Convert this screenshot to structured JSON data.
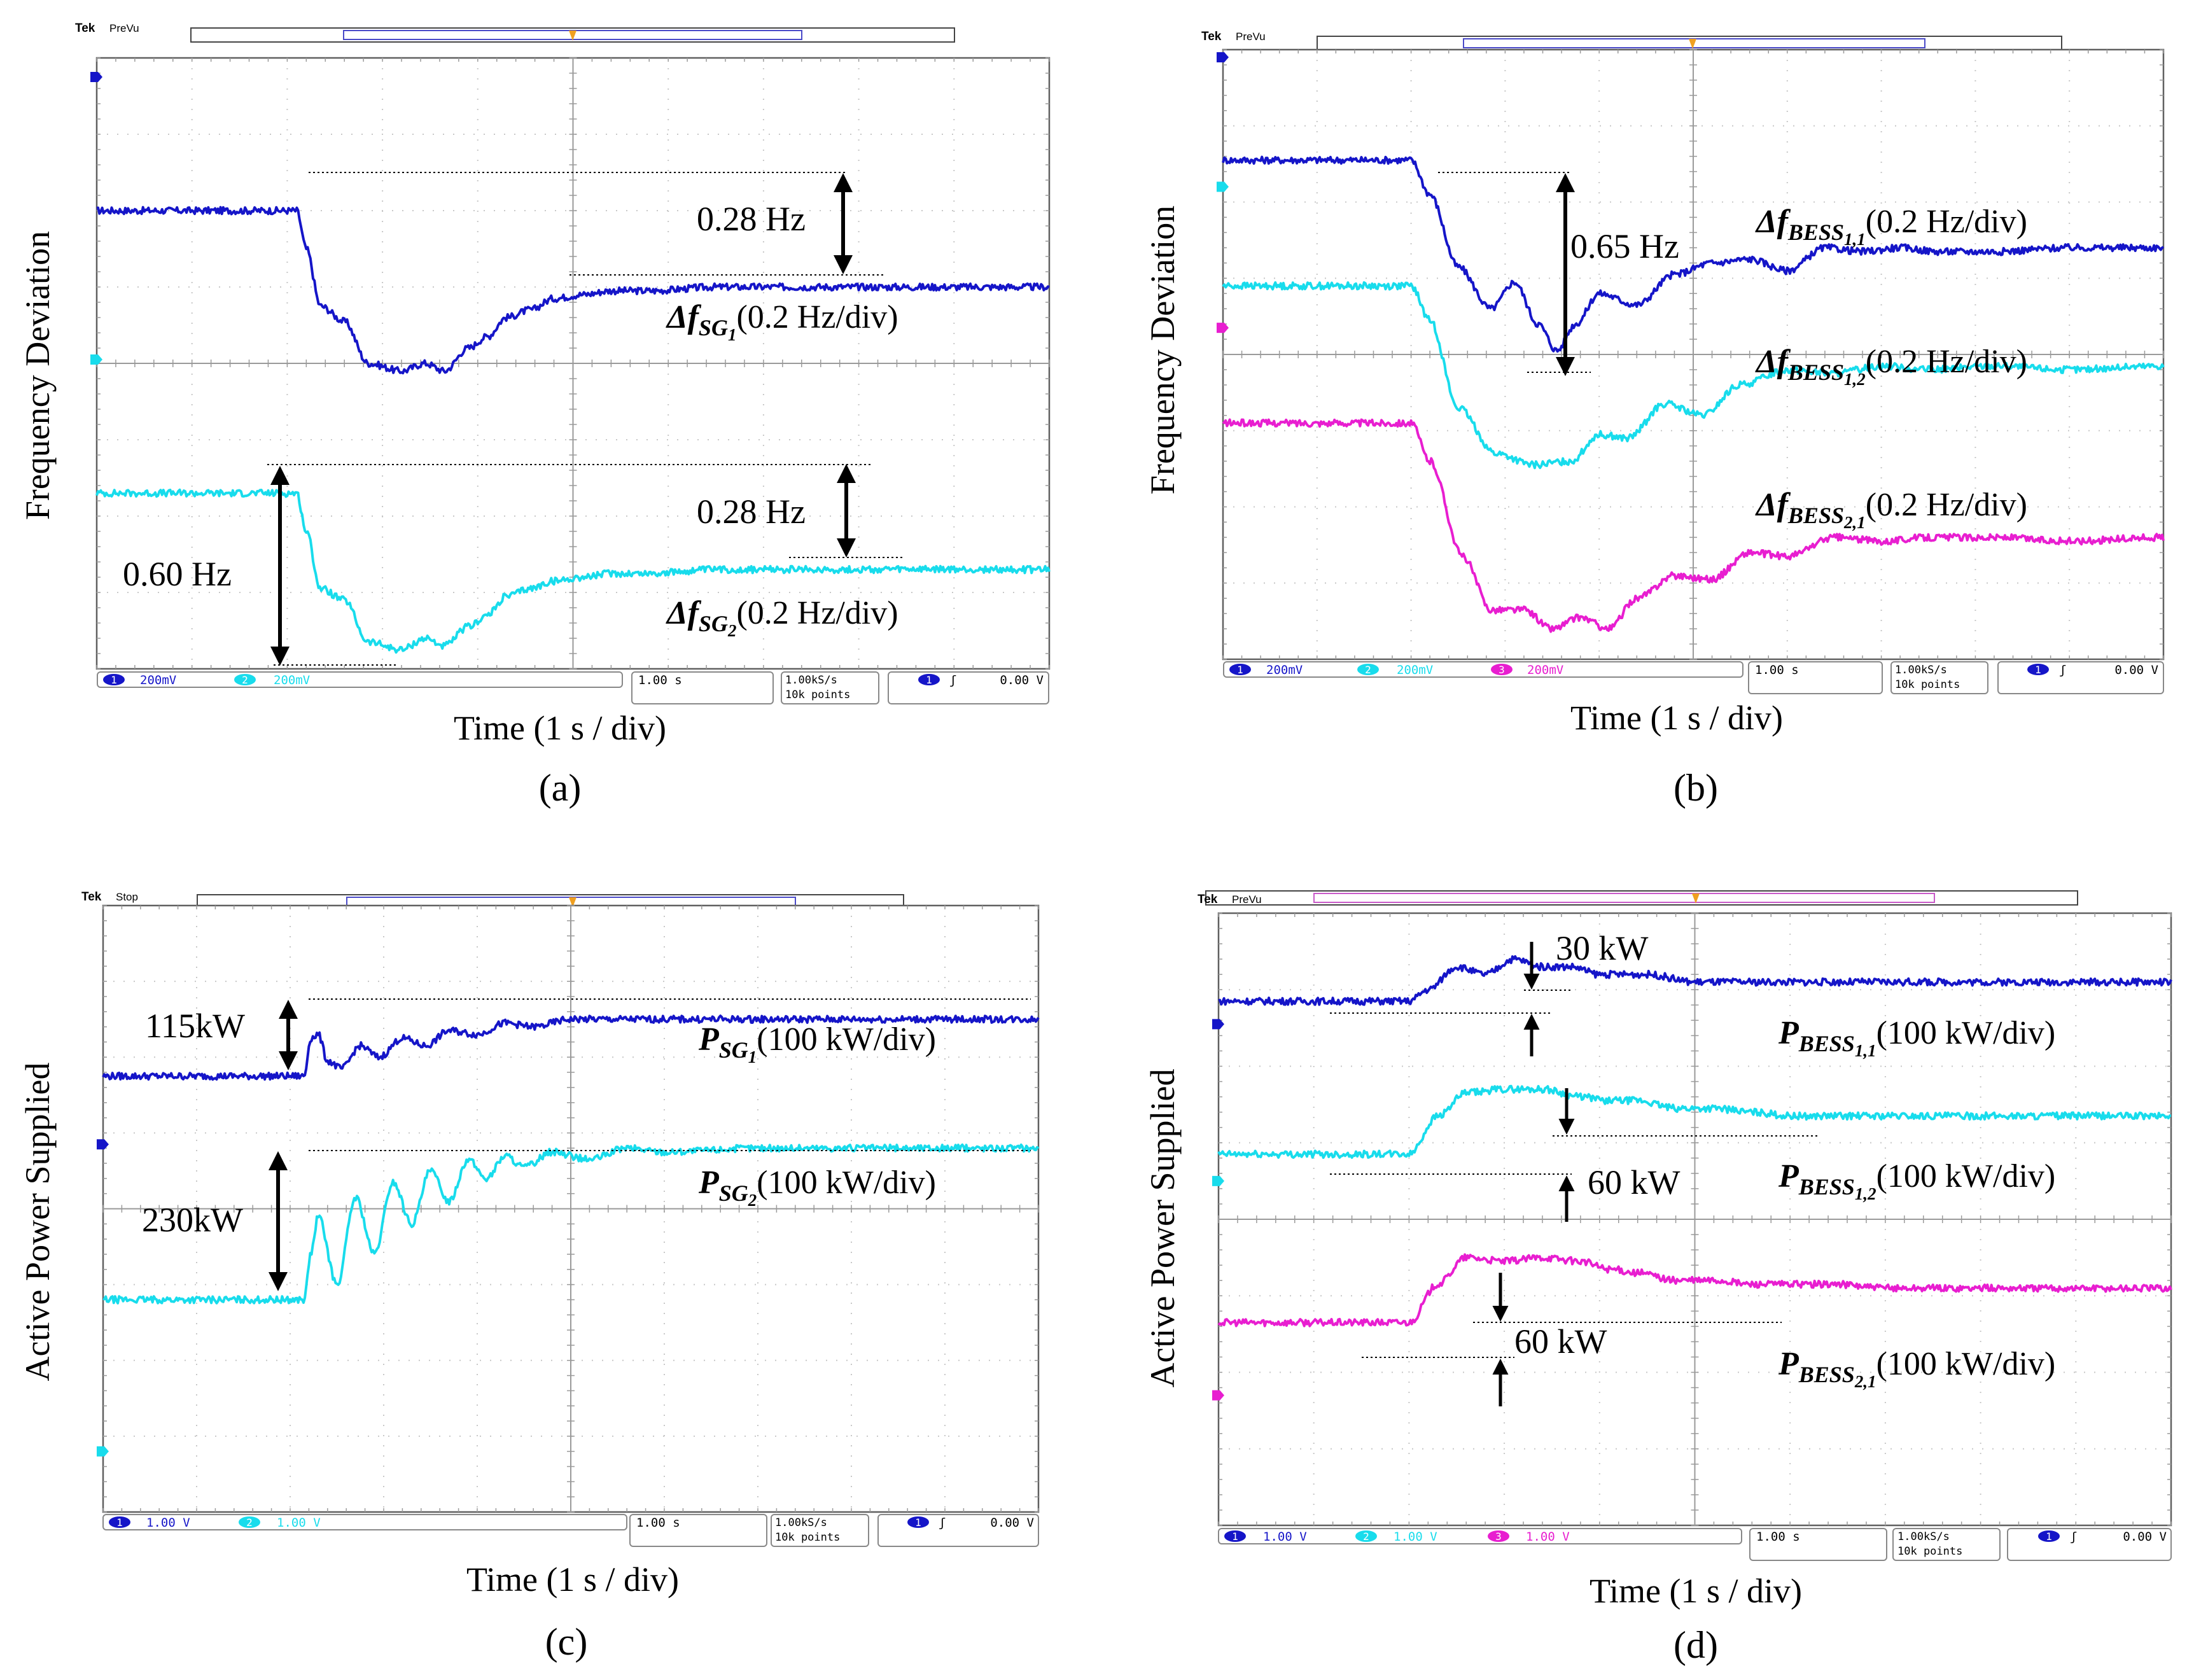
{
  "colors": {
    "ch1": "#1515c8",
    "ch2": "#18dcec",
    "ch3": "#e81ed0",
    "grid": "#c8c8c8",
    "frame": "#606060"
  },
  "chart_data": [
    {
      "type": "line",
      "panel_label": "(a)",
      "tek_header": "Tek",
      "tek_state": "PreVu",
      "ylabel": "Frequency Deviation",
      "xlabel": "Time (1 s / div)",
      "x_divisions": 10,
      "y_divisions": 8,
      "channel_markers": [
        {
          "channel": 1,
          "y_div": 7.75
        },
        {
          "channel": 2,
          "y_div": 4.05
        }
      ],
      "series": [
        {
          "name_base": "Δf",
          "name_sub": "SG",
          "name_subsub": "1",
          "unit_text": "(0.2 Hz/div)",
          "channel": 1,
          "x": [
            0.0,
            2.1,
            2.2,
            2.35,
            2.6,
            2.85,
            3.2,
            3.45,
            3.65,
            3.9,
            4.1,
            4.3,
            4.55,
            4.8,
            5.1,
            5.4,
            5.8,
            6.5,
            7.2,
            8.0,
            8.8,
            10.0
          ],
          "y": [
            6.0,
            6.0,
            5.5,
            4.75,
            4.55,
            4.0,
            3.9,
            4.0,
            3.9,
            4.2,
            4.35,
            4.6,
            4.7,
            4.85,
            4.9,
            4.95,
            4.95,
            5.0,
            5.0,
            5.0,
            5.0,
            5.0
          ]
        },
        {
          "name_base": "Δf",
          "name_sub": "SG",
          "name_subsub": "2",
          "unit_text": "(0.2 Hz/div)",
          "channel": 2,
          "x": [
            0.0,
            2.1,
            2.2,
            2.35,
            2.6,
            2.85,
            3.2,
            3.45,
            3.65,
            3.9,
            4.1,
            4.3,
            4.55,
            4.8,
            5.1,
            5.4,
            5.8,
            6.5,
            7.2,
            8.0,
            8.8,
            10.0
          ],
          "y": [
            2.3,
            2.3,
            1.8,
            1.05,
            0.9,
            0.35,
            0.25,
            0.4,
            0.3,
            0.55,
            0.7,
            0.95,
            1.05,
            1.15,
            1.2,
            1.25,
            1.25,
            1.3,
            1.3,
            1.3,
            1.3,
            1.3
          ]
        }
      ],
      "annotations": [
        "0.28 Hz",
        "0.28 Hz",
        "0.60 Hz"
      ],
      "readouts": {
        "ch1": "200mV",
        "ch2": "200mV",
        "ch3": "",
        "timebase": "1.00 s",
        "rate": "1.00kS/s",
        "points": "10k points",
        "trig_level": "0.00 V"
      }
    },
    {
      "type": "line",
      "panel_label": "(b)",
      "tek_header": "Tek",
      "tek_state": "PreVu",
      "ylabel": "Frequency Deviation",
      "xlabel": "Time (1 s / div)",
      "x_divisions": 10,
      "y_divisions": 8,
      "channel_markers": [
        {
          "channel": 1,
          "y_div": 7.9
        },
        {
          "channel": 2,
          "y_div": 6.2
        },
        {
          "channel": 3,
          "y_div": 4.35
        }
      ],
      "series": [
        {
          "name_base": "Δf",
          "name_sub": "BESS",
          "name_subsub": "1,1",
          "unit_text": "(0.2 Hz/div)",
          "channel": 1,
          "x": [
            0.0,
            2.0,
            2.2,
            2.5,
            2.85,
            3.1,
            3.35,
            3.55,
            3.75,
            4.0,
            4.4,
            4.8,
            5.2,
            5.6,
            6.0,
            6.4,
            6.8,
            7.2,
            7.6,
            8.2,
            9.0,
            10.0
          ],
          "y": [
            6.55,
            6.55,
            6.1,
            5.15,
            4.6,
            4.95,
            4.4,
            4.05,
            4.4,
            4.8,
            4.65,
            5.05,
            5.2,
            5.25,
            5.1,
            5.4,
            5.35,
            5.4,
            5.35,
            5.35,
            5.4,
            5.4
          ]
        },
        {
          "name_base": "Δf",
          "name_sub": "BESS",
          "name_subsub": "1,2",
          "unit_text": "(0.2 Hz/div)",
          "channel": 2,
          "x": [
            0.0,
            2.0,
            2.2,
            2.5,
            2.9,
            3.3,
            3.7,
            4.0,
            4.3,
            4.7,
            5.1,
            5.5,
            6.0,
            6.5,
            7.0,
            7.5,
            8.2,
            9.0,
            10.0
          ],
          "y": [
            4.9,
            4.9,
            4.45,
            3.3,
            2.7,
            2.55,
            2.6,
            2.95,
            2.9,
            3.35,
            3.2,
            3.6,
            3.8,
            3.75,
            3.85,
            3.8,
            3.85,
            3.8,
            3.85
          ]
        },
        {
          "name_base": "Δf",
          "name_sub": "BESS",
          "name_subsub": "2,1",
          "unit_text": "(0.2 Hz/div)",
          "channel": 3,
          "x": [
            0.0,
            2.0,
            2.2,
            2.55,
            2.85,
            3.2,
            3.5,
            3.8,
            4.1,
            4.4,
            4.8,
            5.2,
            5.6,
            6.0,
            6.5,
            7.0,
            7.5,
            8.2,
            9.0,
            10.0
          ],
          "y": [
            3.1,
            3.1,
            2.6,
            1.35,
            0.65,
            0.65,
            0.4,
            0.55,
            0.4,
            0.8,
            1.1,
            1.05,
            1.4,
            1.35,
            1.6,
            1.55,
            1.6,
            1.6,
            1.55,
            1.6
          ]
        }
      ],
      "annotations": [
        "0.65 Hz"
      ],
      "readouts": {
        "ch1": "200mV",
        "ch2": "200mV",
        "ch3": "200mV",
        "timebase": "1.00 s",
        "rate": "1.00kS/s",
        "points": "10k points",
        "trig_level": "0.00 V"
      }
    },
    {
      "type": "line",
      "panel_label": "(c)",
      "tek_header": "Tek",
      "tek_state": "Stop",
      "ylabel": "Active Power Supplied",
      "xlabel": "Time (1 s / div)",
      "x_divisions": 10,
      "y_divisions": 8,
      "channel_markers": [
        {
          "channel": 1,
          "y_div": 4.85
        },
        {
          "channel": 2,
          "y_div": 0.8
        }
      ],
      "series": [
        {
          "name_base": "P",
          "name_sub": "SG",
          "name_subsub": "1",
          "unit_text": "(100 kW/div)",
          "channel": 1,
          "x": [
            0.0,
            2.15,
            2.22,
            2.3,
            2.4,
            2.55,
            2.75,
            2.95,
            3.2,
            3.45,
            3.7,
            4.0,
            4.3,
            4.6,
            5.0,
            5.5,
            6.5,
            7.5,
            8.5,
            10.0
          ],
          "y": [
            5.75,
            5.75,
            6.25,
            6.3,
            5.95,
            5.85,
            6.15,
            6.0,
            6.25,
            6.15,
            6.35,
            6.3,
            6.45,
            6.4,
            6.5,
            6.5,
            6.5,
            6.5,
            6.5,
            6.5
          ]
        },
        {
          "name_base": "P",
          "name_sub": "SG",
          "name_subsub": "2",
          "unit_text": "(100 kW/div)",
          "channel": 2,
          "x": [
            0.0,
            2.15,
            2.22,
            2.3,
            2.5,
            2.7,
            2.9,
            3.1,
            3.3,
            3.5,
            3.7,
            3.9,
            4.1,
            4.3,
            4.5,
            4.8,
            5.2,
            5.6,
            6.0,
            7.0,
            8.0,
            10.0
          ],
          "y": [
            2.8,
            2.8,
            3.4,
            3.9,
            3.0,
            4.15,
            3.4,
            4.35,
            3.8,
            4.5,
            4.1,
            4.65,
            4.4,
            4.7,
            4.55,
            4.75,
            4.65,
            4.8,
            4.75,
            4.8,
            4.8,
            4.8
          ]
        }
      ],
      "annotations": [
        "115kW",
        "230kW"
      ],
      "readouts": {
        "ch1": "1.00 V",
        "ch2": "1.00 V",
        "ch3": "",
        "timebase": "1.00 s",
        "rate": "1.00kS/s",
        "points": "10k points",
        "trig_level": "0.00 V"
      }
    },
    {
      "type": "line",
      "panel_label": "(d)",
      "tek_header": "Tek",
      "tek_state": "PreVu",
      "ylabel": "Active Power Supplied",
      "xlabel": "Time (1 s / div)",
      "x_divisions": 10,
      "y_divisions": 8,
      "channel_markers": [
        {
          "channel": 1,
          "y_div": 6.55
        },
        {
          "channel": 2,
          "y_div": 4.5
        },
        {
          "channel": 3,
          "y_div": 1.7
        }
      ],
      "series": [
        {
          "name_base": "P",
          "name_sub": "BESS",
          "name_subsub": "1,1",
          "unit_text": "(100 kW/div)",
          "channel": 1,
          "x": [
            0.0,
            2.0,
            2.2,
            2.5,
            2.8,
            3.1,
            3.4,
            3.7,
            4.0,
            4.5,
            5.0,
            6.0,
            7.0,
            8.0,
            9.0,
            10.0
          ],
          "y": [
            6.85,
            6.85,
            7.0,
            7.3,
            7.2,
            7.4,
            7.3,
            7.3,
            7.2,
            7.2,
            7.1,
            7.1,
            7.1,
            7.1,
            7.1,
            7.1
          ]
        },
        {
          "name_base": "P",
          "name_sub": "BESS",
          "name_subsub": "1,2",
          "unit_text": "(100 kW/div)",
          "channel": 2,
          "x": [
            0.0,
            2.0,
            2.3,
            2.6,
            3.0,
            3.4,
            3.8,
            4.1,
            4.4,
            4.8,
            5.2,
            5.6,
            6.0,
            6.5,
            7.0,
            8.0,
            9.0,
            10.0
          ],
          "y": [
            4.85,
            4.85,
            5.35,
            5.65,
            5.7,
            5.7,
            5.6,
            5.55,
            5.55,
            5.45,
            5.45,
            5.4,
            5.35,
            5.35,
            5.35,
            5.35,
            5.35,
            5.35
          ]
        },
        {
          "name_base": "P",
          "name_sub": "BESS",
          "name_subsub": "2,1",
          "unit_text": "(100 kW/div)",
          "channel": 3,
          "x": [
            0.0,
            2.0,
            2.3,
            2.6,
            3.0,
            3.4,
            3.8,
            4.1,
            4.4,
            4.8,
            5.2,
            5.6,
            6.0,
            6.5,
            7.0,
            8.0,
            9.0,
            10.0
          ],
          "y": [
            2.65,
            2.65,
            3.15,
            3.5,
            3.45,
            3.5,
            3.45,
            3.35,
            3.3,
            3.2,
            3.2,
            3.15,
            3.15,
            3.15,
            3.1,
            3.1,
            3.1,
            3.1
          ]
        }
      ],
      "annotations": [
        "30 kW",
        "60 kW",
        "60 kW"
      ],
      "readouts": {
        "ch1": "1.00 V",
        "ch2": "1.00 V",
        "ch3": "1.00 V",
        "timebase": "1.00 s",
        "rate": "1.00kS/s",
        "points": "10k points",
        "trig_level": "0.00 V"
      }
    }
  ]
}
